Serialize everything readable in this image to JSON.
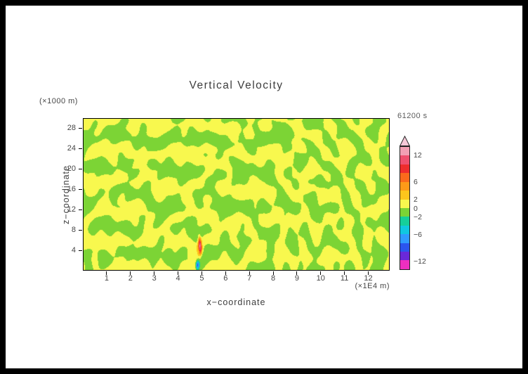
{
  "window": {
    "frame_color": "#000000",
    "sheet_color": "#ffffff"
  },
  "figure": {
    "title": "Vertical Velocity",
    "timestamp_label": "61200 s",
    "y_axis_unit": "(×1000 m)",
    "x_axis_unit": "(×1E4 m)",
    "x_axis_label": "x−coordinate",
    "y_axis_label": "z−coordinate"
  },
  "chart_data": {
    "type": "heatmap",
    "title": "Vertical Velocity",
    "field": "vertical velocity",
    "time_stamp": "61200 s",
    "xlabel": "x−coordinate",
    "x_unit": "×1E4 m",
    "ylabel": "z−coordinate",
    "y_unit": "×1000 m",
    "xlim": [
      0,
      12.9
    ],
    "ylim": [
      0,
      30
    ],
    "x_ticks": [
      1,
      2,
      3,
      4,
      5,
      6,
      7,
      8,
      9,
      10,
      11,
      12
    ],
    "y_ticks": [
      4,
      8,
      12,
      16,
      20,
      24,
      28
    ],
    "grid": false,
    "legend_position": "colorbar-right",
    "colorbar": {
      "level_min": -14,
      "level_max": 14,
      "level_step": 2,
      "cell_colors_top_to_bottom": [
        "#f2a0b4",
        "#ef506e",
        "#ee2d2d",
        "#fa6a1c",
        "#fd9a18",
        "#fdc61c",
        "#f8f84e",
        "#7cd435",
        "#16cf9a",
        "#10c8e0",
        "#2f9bff",
        "#2b55ee",
        "#6a28d9",
        "#ee2fc0"
      ],
      "over_arrow_color": "#f6c9d8",
      "ticks": [
        {
          "value": 12,
          "label": "12"
        },
        {
          "value": 6,
          "label": "6"
        },
        {
          "value": 2,
          "label": "2"
        },
        {
          "value": 0,
          "label": "0"
        },
        {
          "value": -2,
          "label": "−2"
        },
        {
          "value": -6,
          "label": "−6"
        },
        {
          "value": -12,
          "label": "−12"
        }
      ]
    },
    "field_summary": {
      "background": "mottled wave-interference pattern of weak vertical velocity between -2 and 2 m/s; yellow cells are 0..2, green cells are -2..0, arcs radiate from a source near x=5e4 m",
      "updraft": {
        "x": 4.9,
        "z_center": 5,
        "z_extent": [
          2,
          8
        ],
        "peak_value": 11
      },
      "downdraft": {
        "x": 4.8,
        "z_center": 1,
        "z_extent": [
          0,
          3
        ],
        "peak_value": -10
      }
    },
    "noise_render": {
      "seed": 987654321,
      "plane_waves": 30,
      "radial_waves": 6,
      "bg_clamp": 1.9,
      "bg_scale": 0.5,
      "bg_bias": 0.15
    }
  }
}
